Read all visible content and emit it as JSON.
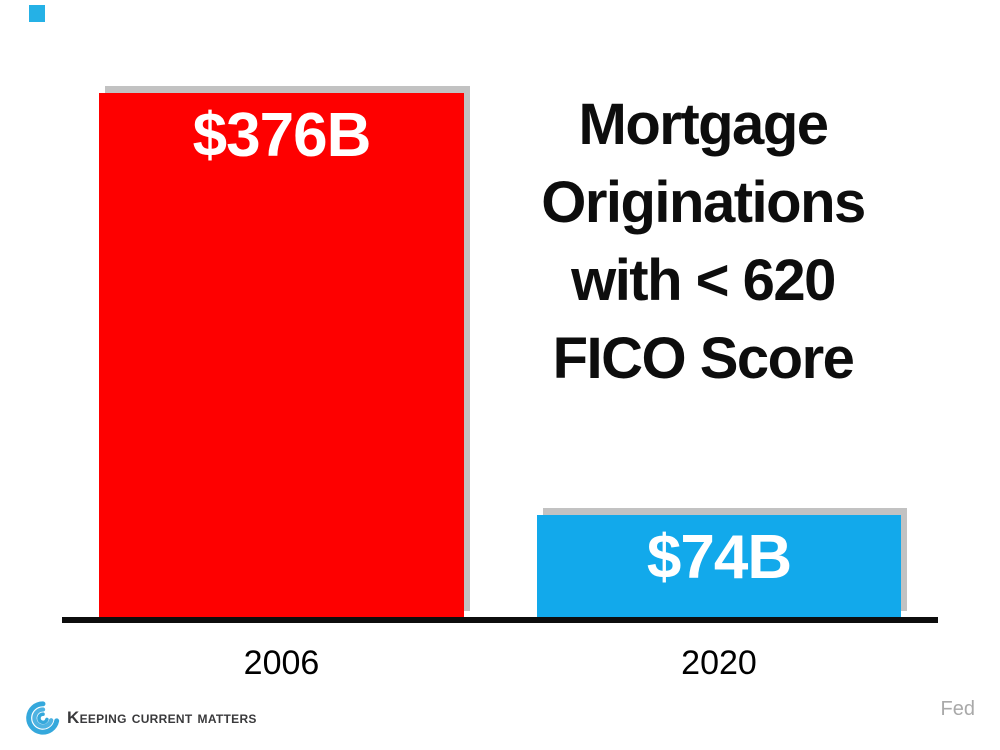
{
  "chart_data": {
    "type": "bar",
    "title": "Mortgage Originations with < 620 FICO Score",
    "title_lines": [
      "Mortgage",
      "Originations",
      "with < 620",
      "FICO Score"
    ],
    "categories": [
      "2006",
      "2020"
    ],
    "values": [
      376,
      74
    ],
    "value_labels": [
      "$376B",
      "$74B"
    ],
    "series_colors": [
      "#FE0000",
      "#12A9EB"
    ],
    "ylim": [
      0,
      400
    ],
    "grid": false,
    "legend": false,
    "axis_color": "#0D0D0D",
    "source": "Fed"
  },
  "footer": {
    "brand": "Keeping Current Matters",
    "logo_icon": "swirl-icon",
    "logo_blue": "#35A8DC"
  },
  "decor": {
    "accent_square_color": "#25B1E6",
    "bar_shadow_color": "#C2C2C2",
    "source_text_color": "#A9A9A9"
  }
}
